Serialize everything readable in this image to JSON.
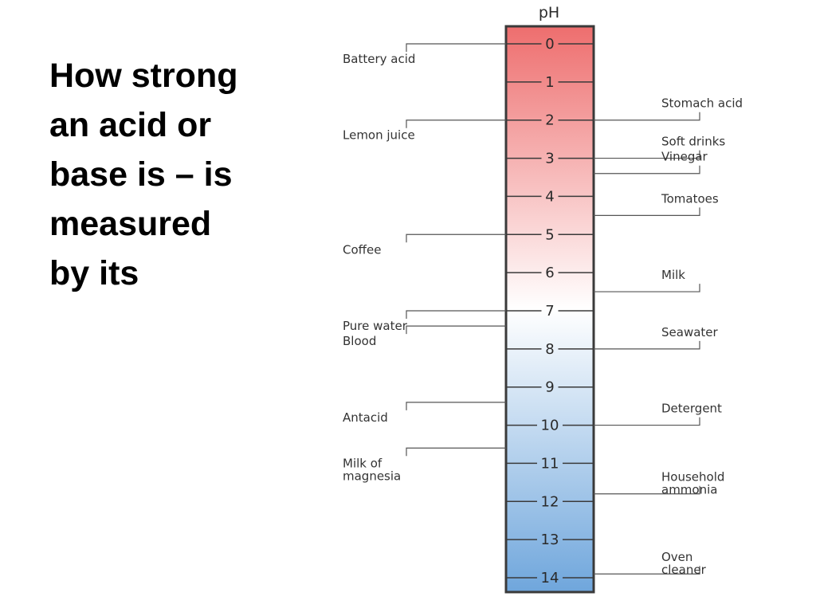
{
  "slide": {
    "title_lines": [
      "How strong",
      "an acid or",
      "base is – is",
      "measured",
      "by its"
    ]
  },
  "chart_data": {
    "type": "scale",
    "axis_title": "pH",
    "ticks": [
      "0",
      "1",
      "2",
      "3",
      "4",
      "5",
      "6",
      "7",
      "8",
      "9",
      "10",
      "11",
      "12",
      "13",
      "14"
    ],
    "ylim": [
      0,
      14
    ],
    "gradient_colors": {
      "acid": "#ee6e6e",
      "neutral": "#ffffff",
      "base": "#6fa6dc"
    },
    "left_labels": [
      {
        "lines": [
          "Battery acid"
        ],
        "ph": 0
      },
      {
        "lines": [
          "Lemon juice"
        ],
        "ph": 2
      },
      {
        "lines": [
          "Coffee"
        ],
        "ph": 5
      },
      {
        "lines": [
          "Pure water"
        ],
        "ph": 7
      },
      {
        "lines": [
          "Blood"
        ],
        "ph": 7.4
      },
      {
        "lines": [
          "Antacid"
        ],
        "ph": 9.4
      },
      {
        "lines": [
          "Milk of",
          "magnesia"
        ],
        "ph": 10.6
      }
    ],
    "right_labels": [
      {
        "lines": [
          "Stomach acid"
        ],
        "ph": 2
      },
      {
        "lines": [
          "Soft drinks"
        ],
        "ph": 3
      },
      {
        "lines": [
          "Vinegar"
        ],
        "ph": 3.4
      },
      {
        "lines": [
          "Tomatoes"
        ],
        "ph": 4.5
      },
      {
        "lines": [
          "Milk"
        ],
        "ph": 6.5
      },
      {
        "lines": [
          "Seawater"
        ],
        "ph": 8
      },
      {
        "lines": [
          "Detergent"
        ],
        "ph": 10
      },
      {
        "lines": [
          "Household",
          "ammonia"
        ],
        "ph": 11.8
      },
      {
        "lines": [
          "Oven",
          "cleaner"
        ],
        "ph": 13.9
      }
    ]
  }
}
